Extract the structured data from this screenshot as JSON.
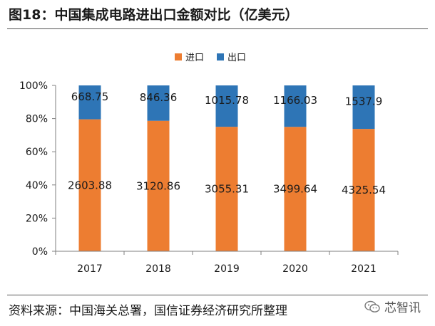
{
  "figure": {
    "title": "图18：中国集成电路进出口金额对比（亿美元）",
    "source": "资料来源：中国海关总署，国信证券经济研究所整理",
    "watermark": "芯智讯"
  },
  "chart_data": {
    "type": "bar",
    "stacked": true,
    "normalized": true,
    "title": "",
    "xlabel": "",
    "ylabel": "",
    "categories": [
      "2017",
      "2018",
      "2019",
      "2020",
      "2021"
    ],
    "series": [
      {
        "name": "进口",
        "color": "#ED7D31",
        "values": [
          2603.88,
          3120.86,
          3055.31,
          3499.64,
          4325.54
        ],
        "labels": [
          "2603.88",
          "3120.86",
          "3055.31",
          "3499.64",
          "4325.54"
        ]
      },
      {
        "name": "出口",
        "color": "#2E75B6",
        "values": [
          668.75,
          846.36,
          1015.78,
          1166.03,
          1537.9
        ],
        "labels": [
          "668.75",
          "846.36",
          "1015.78",
          "1166.03",
          "1537.9"
        ]
      }
    ],
    "yticks": [
      "0%",
      "20%",
      "40%",
      "60%",
      "80%",
      "100%"
    ],
    "ylim": [
      0,
      100
    ],
    "grid": false,
    "legend": "top-center"
  }
}
